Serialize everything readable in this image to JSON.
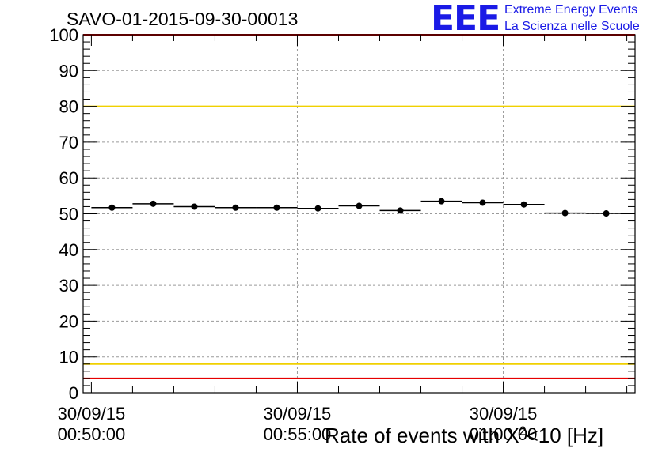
{
  "chart_data": {
    "type": "scatter",
    "title": "SAVO-01-2015-09-30-00013",
    "xlabel": "Rate of events with X",
    "xlabel_superscript": "2",
    "xlabel_suffix": "<10 [Hz]",
    "ylim": [
      0,
      100
    ],
    "y_ticks": [
      "0",
      "10",
      "20",
      "30",
      "40",
      "50",
      "60",
      "70",
      "80",
      "90",
      "100"
    ],
    "x_ticks": [
      {
        "date": "30/09/15",
        "time": "00:50:00"
      },
      {
        "date": "30/09/15",
        "time": "00:55:00"
      },
      {
        "date": "30/09/15",
        "time": "01:00:00"
      }
    ],
    "x_range_minutes": [
      -0.2,
      13.2
    ],
    "x_tick_minutes": [
      0,
      5,
      10
    ],
    "points": [
      {
        "x": 0.5,
        "y": 51.7,
        "x_halfwidth": 0.5
      },
      {
        "x": 1.5,
        "y": 52.8,
        "x_halfwidth": 0.5
      },
      {
        "x": 2.5,
        "y": 52.0,
        "x_halfwidth": 0.5
      },
      {
        "x": 3.5,
        "y": 51.7,
        "x_halfwidth": 0.5
      },
      {
        "x": 4.5,
        "y": 51.7,
        "x_halfwidth": 0.5
      },
      {
        "x": 5.5,
        "y": 51.5,
        "x_halfwidth": 0.5
      },
      {
        "x": 6.5,
        "y": 52.2,
        "x_halfwidth": 0.5
      },
      {
        "x": 7.5,
        "y": 50.9,
        "x_halfwidth": 0.5
      },
      {
        "x": 8.5,
        "y": 53.5,
        "x_halfwidth": 0.5
      },
      {
        "x": 9.5,
        "y": 53.1,
        "x_halfwidth": 0.5
      },
      {
        "x": 10.5,
        "y": 52.6,
        "x_halfwidth": 0.5
      },
      {
        "x": 11.5,
        "y": 50.2,
        "x_halfwidth": 0.5
      },
      {
        "x": 12.5,
        "y": 50.1,
        "x_halfwidth": 0.5
      }
    ],
    "reference_lines": [
      {
        "y": 100,
        "color": "#e60000"
      },
      {
        "y": 80,
        "color": "#f0d000"
      },
      {
        "y": 8,
        "color": "#f0d000"
      },
      {
        "y": 4,
        "color": "#e60000"
      }
    ],
    "grid": true
  },
  "logo": {
    "letters": "EEE",
    "line1": "Extreme Energy Events",
    "line2": "La Scienza nelle Scuole"
  },
  "colors": {
    "accent": "#1a1ae6",
    "marker": "#000000"
  }
}
